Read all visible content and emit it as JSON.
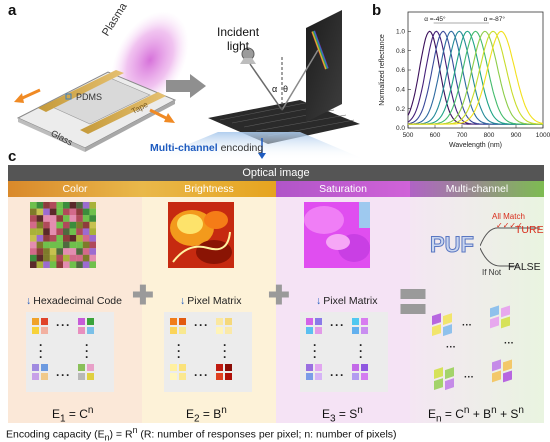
{
  "panel_a": {
    "letter": "a",
    "plasma": "Plasma",
    "pdms": "PDMS",
    "glass": "Glass",
    "tape": "Tape",
    "incident_light": "Incident\nlight",
    "alpha": "α",
    "theta": "θ",
    "multi_channel": "Multi-channel",
    "encoding": "encoding"
  },
  "panel_b": {
    "letter": "b",
    "chart_data": {
      "type": "line",
      "xlabel": "Wavelength (nm)",
      "ylabel": "Normalized reflectance",
      "xlim": [
        500,
        1000
      ],
      "ylim": [
        0,
        1.2
      ],
      "xticks": [
        500,
        600,
        700,
        800,
        900,
        1000
      ],
      "yticks": [
        0.0,
        0.2,
        0.4,
        0.6,
        0.8,
        1.0
      ],
      "annotations": [
        "α =-45°",
        "α =-87°"
      ],
      "series": [
        {
          "peak": 580,
          "color": "#3b0f5a"
        },
        {
          "peak": 605,
          "color": "#45207a"
        },
        {
          "peak": 630,
          "color": "#3a4a9a"
        },
        {
          "peak": 660,
          "color": "#2e6aa0"
        },
        {
          "peak": 690,
          "color": "#248a98"
        },
        {
          "peak": 720,
          "color": "#20a486"
        },
        {
          "peak": 750,
          "color": "#43bb6c"
        },
        {
          "peak": 785,
          "color": "#8ccd48"
        },
        {
          "peak": 815,
          "color": "#c8dc2a"
        },
        {
          "peak": 845,
          "color": "#f3e01c"
        }
      ]
    }
  },
  "panel_c": {
    "letter": "c",
    "title": "Optical image",
    "headers": [
      "Color",
      "Brightness",
      "Saturation",
      "Multi-channel"
    ],
    "code_labels": [
      "Hexadecimal Code",
      "Pixel Matrix",
      "Pixel Matrix"
    ],
    "formulas": [
      {
        "main": "E",
        "sub": "1",
        "rest": " = C",
        "sup": "n"
      },
      {
        "main": "E",
        "sub": "2",
        "rest": " = B",
        "sup": "n"
      },
      {
        "main": "E",
        "sub": "3",
        "rest": " = S",
        "sup": "n"
      }
    ],
    "final_formula": {
      "main": "E",
      "sub": "n",
      "rest": " = C",
      "sup": "n"
    },
    "final_b": " + B",
    "final_s": " + S",
    "final_sup": "n",
    "puf": "PUF",
    "all_match": "All Match",
    "ture": "TURE",
    "if_not": "If Not",
    "false_label": "FALSE"
  },
  "caption": "Encoding capacity (E",
  "caption_sub": "n",
  "caption_mid": ") = R",
  "caption_sup": "n",
  "caption_end": " (R: number of responses per pixel; n: number of pixels)"
}
